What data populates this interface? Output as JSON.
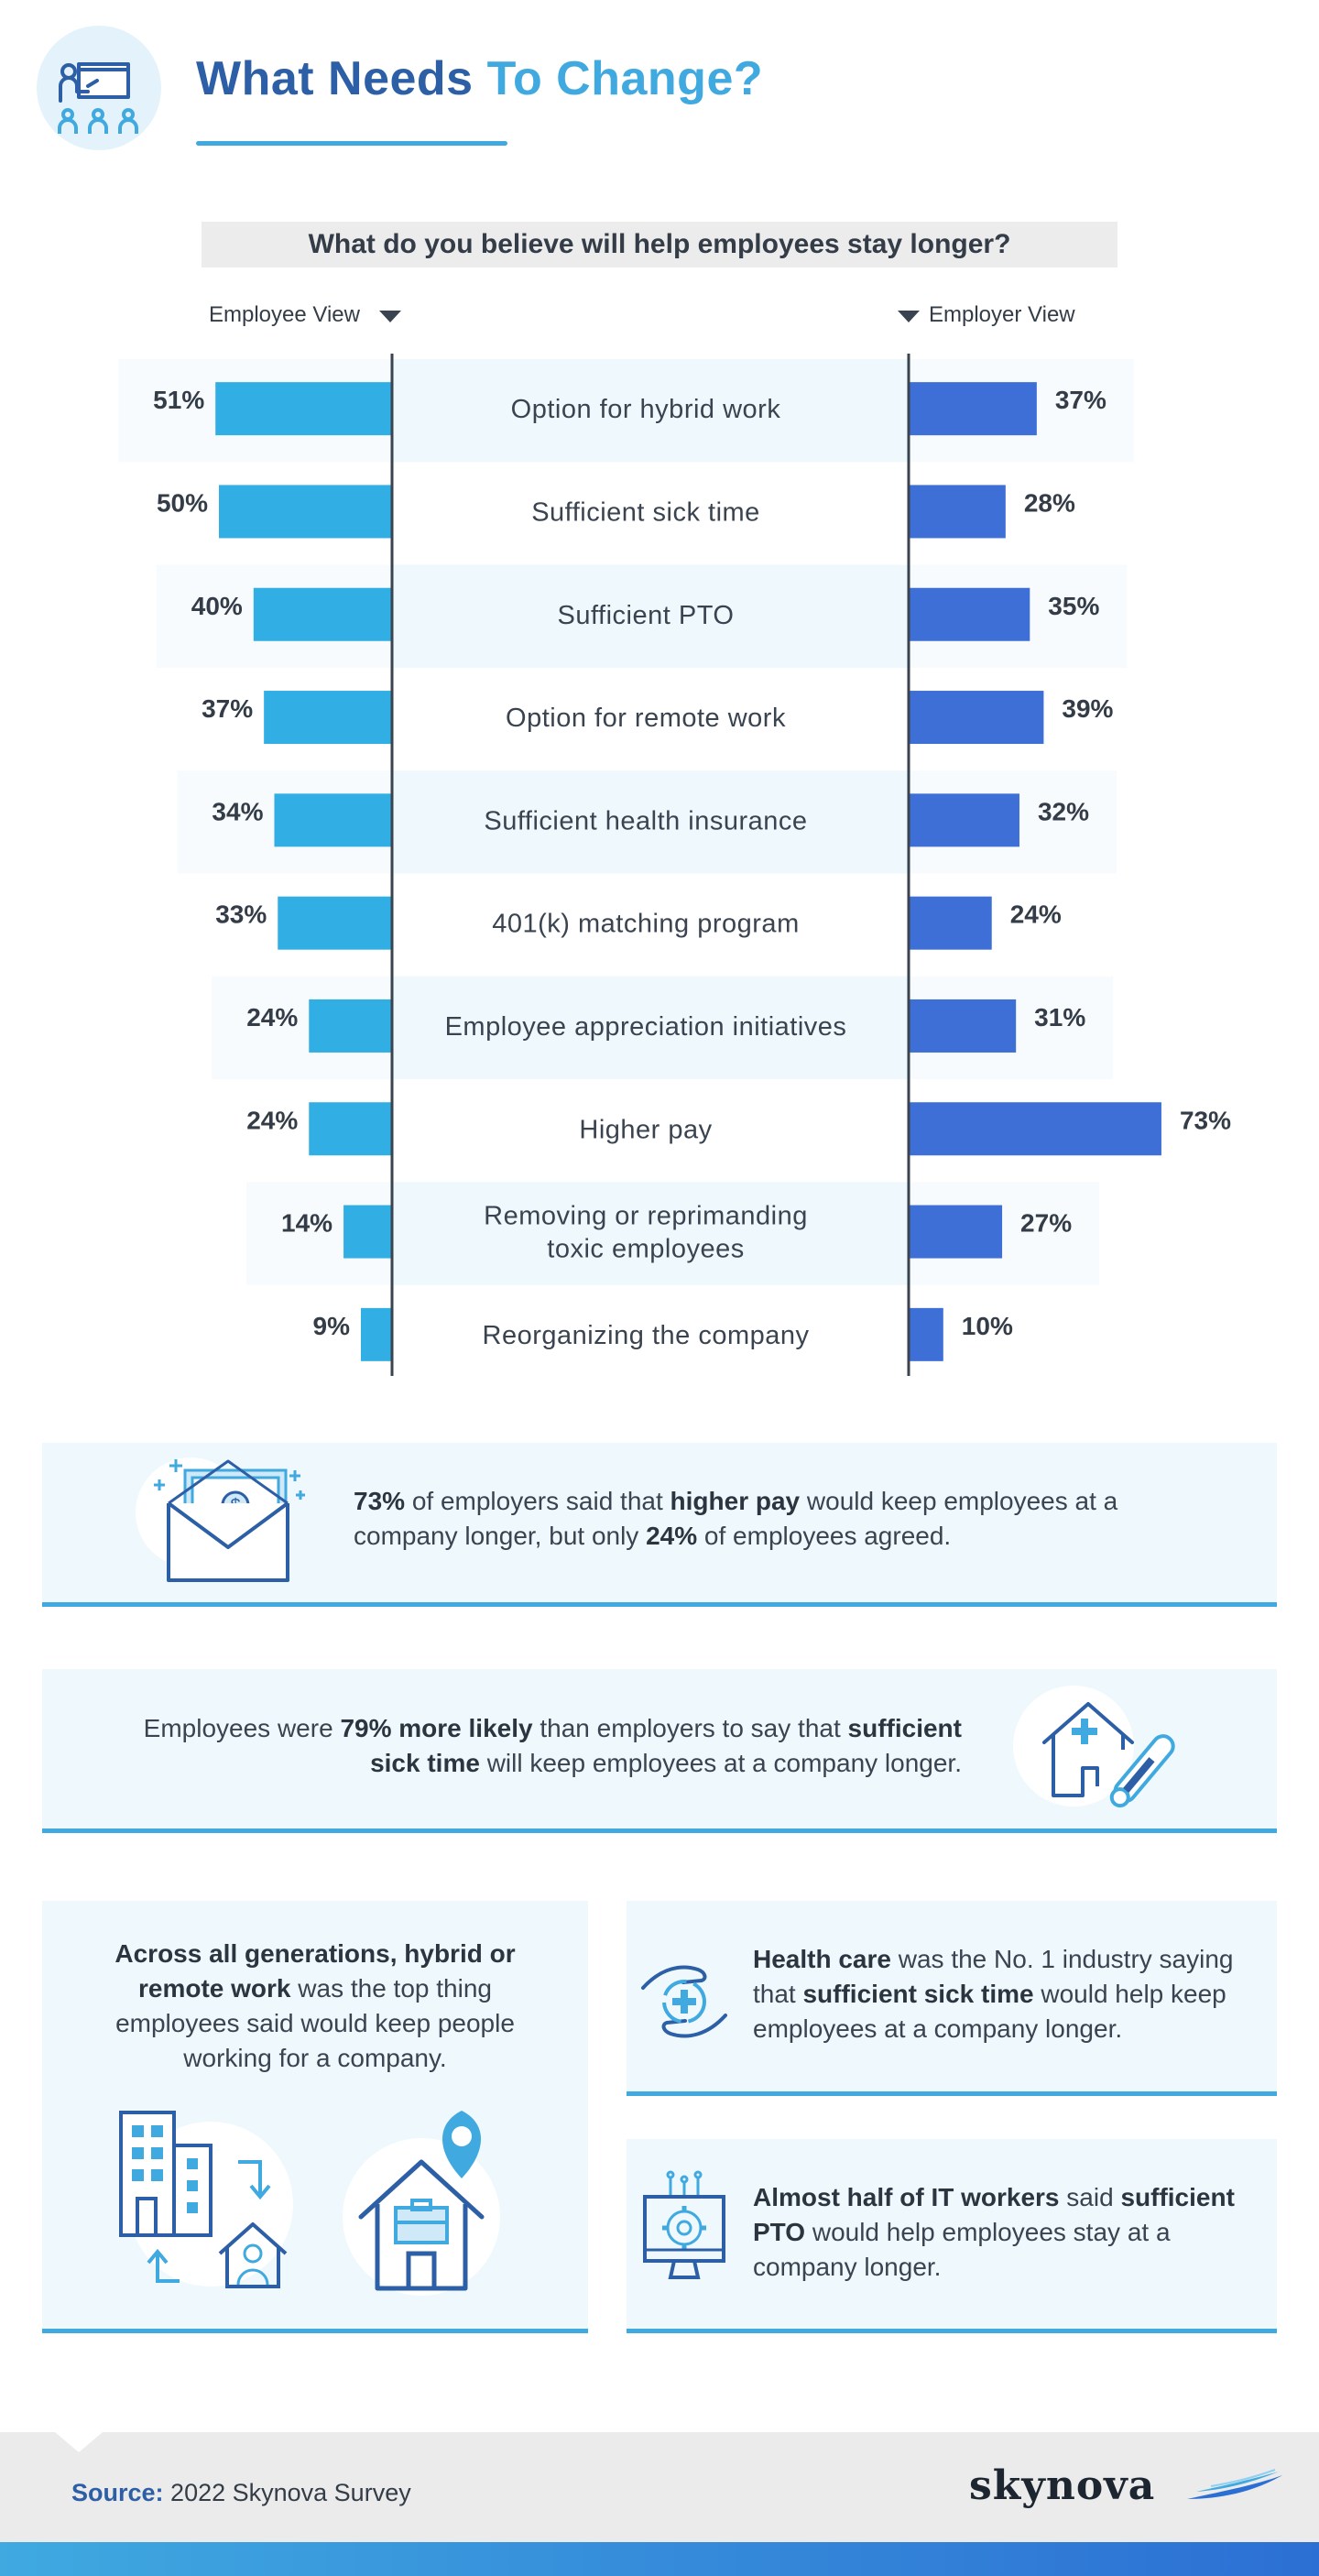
{
  "header": {
    "title_part1": "What Needs",
    "title_part2": "To Change?"
  },
  "question": "What do you believe will help employees stay longer?",
  "legend": {
    "employee": "Employee View",
    "employer": "Employer View"
  },
  "colors": {
    "employee": "#31aee3",
    "employer": "#3d6fd6",
    "title_dark": "#2c5fa5",
    "title_light": "#3fa9e0"
  },
  "chart_data": {
    "type": "bar",
    "title": "What do you believe will help employees stay longer?",
    "categories": [
      [
        "Option for hybrid work"
      ],
      [
        "Sufficient sick time"
      ],
      [
        "Sufficient PTO"
      ],
      [
        "Option for remote work"
      ],
      [
        "Sufficient health insurance"
      ],
      [
        "401(k) matching program"
      ],
      [
        "Employee appreciation initiatives"
      ],
      [
        "Higher pay"
      ],
      [
        "Removing or reprimanding",
        "toxic employees"
      ],
      [
        "Reorganizing the company"
      ]
    ],
    "series": [
      {
        "name": "Employee View",
        "values": [
          51,
          50,
          40,
          37,
          34,
          33,
          24,
          24,
          14,
          9
        ]
      },
      {
        "name": "Employer View",
        "values": [
          37,
          28,
          35,
          39,
          32,
          24,
          31,
          73,
          27,
          10
        ]
      }
    ],
    "value_labels": {
      "employee": [
        "51%",
        "50%",
        "40%",
        "37%",
        "34%",
        "33%",
        "24%",
        "24%",
        "14%",
        "9%"
      ],
      "employer": [
        "37%",
        "28%",
        "35%",
        "39%",
        "32%",
        "24%",
        "31%",
        "73%",
        "27%",
        "10%"
      ]
    },
    "unit": "%",
    "layout": "diverging horizontal bars"
  },
  "callouts": {
    "pay": {
      "p1": "73%",
      "p2": " of employers said that ",
      "p3": "higher pay",
      "p4": " would keep employees at a company longer, but only ",
      "p5": "24%",
      "p6": " of employees agreed."
    },
    "sick": {
      "p1": "Employees were ",
      "p2": "79% more likely",
      "p3": " than employers to say that ",
      "p4": "sufficient sick time",
      "p5": " will keep employees at a company longer."
    },
    "hybrid": {
      "p1": "Across all generations, hybrid or remote work",
      "p2": " was the top thing employees said would keep people working for a company."
    },
    "health": {
      "p1": "Health care",
      "p2": " was the No. 1 industry saying that ",
      "p3": "sufficient sick time",
      "p4": " would help keep employees at a company longer."
    },
    "it": {
      "p1": "Almost half of IT workers",
      "p2": " said ",
      "p3": "sufficient PTO",
      "p4": " would help employees stay at a company longer."
    }
  },
  "footer": {
    "source_label": "Source:",
    "source_text": "2022 Skynova Survey",
    "brand": "skynova"
  }
}
